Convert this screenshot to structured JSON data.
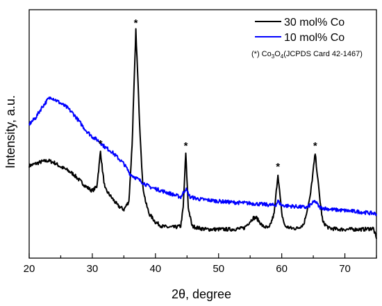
{
  "chart_data": {
    "type": "line",
    "title": "",
    "xlabel": "2θ, degree",
    "ylabel": "Intensity, a.u.",
    "xlim": [
      20,
      75
    ],
    "ylim": [
      0,
      100
    ],
    "x_ticks": [
      20,
      30,
      40,
      50,
      60,
      70
    ],
    "y_ticks_labeled": false,
    "grid": false,
    "legend_position": "top-right",
    "annotation": {
      "prefix": "(*) Co",
      "sub1": "3",
      "mid": "O",
      "sub2": "4",
      "suffix": "(JCPDS Card 42-1467)"
    },
    "peak_marker": "*",
    "peak_positions": [
      31.3,
      36.9,
      44.8,
      59.4,
      65.3
    ],
    "colors": {
      "series_30": "#000000",
      "series_10": "#0000ff"
    },
    "series": [
      {
        "name": "30 mol% Co",
        "color": "#000000",
        "points": [
          [
            20,
            35
          ],
          [
            21,
            36
          ],
          [
            22,
            37
          ],
          [
            23,
            37.5
          ],
          [
            24,
            36.5
          ],
          [
            25,
            34.5
          ],
          [
            26,
            33
          ],
          [
            27,
            31
          ],
          [
            28,
            28
          ],
          [
            29,
            25
          ],
          [
            30,
            23
          ],
          [
            30.7,
            25
          ],
          [
            31.0,
            33
          ],
          [
            31.3,
            42
          ],
          [
            31.6,
            33
          ],
          [
            32.0,
            24
          ],
          [
            33,
            20
          ],
          [
            34,
            16
          ],
          [
            35,
            14
          ],
          [
            35.8,
            18
          ],
          [
            36.3,
            45
          ],
          [
            36.9,
            100
          ],
          [
            37.5,
            55
          ],
          [
            38,
            25
          ],
          [
            38.5,
            17
          ],
          [
            39,
            12
          ],
          [
            40,
            8
          ],
          [
            41,
            6
          ],
          [
            42,
            5.5
          ],
          [
            43,
            5.5
          ],
          [
            44,
            6
          ],
          [
            44.4,
            15
          ],
          [
            44.8,
            41
          ],
          [
            45.2,
            15
          ],
          [
            45.8,
            6
          ],
          [
            47,
            5
          ],
          [
            48,
            4.5
          ],
          [
            50,
            4.5
          ],
          [
            52,
            4.5
          ],
          [
            54,
            5
          ],
          [
            55.5,
            10
          ],
          [
            56,
            10
          ],
          [
            57,
            6
          ],
          [
            58,
            5
          ],
          [
            58.8,
            12
          ],
          [
            59.4,
            31
          ],
          [
            60,
            12
          ],
          [
            60.5,
            6
          ],
          [
            61.5,
            5
          ],
          [
            62.5,
            5
          ],
          [
            63.5,
            7
          ],
          [
            64.5,
            20
          ],
          [
            65.3,
            41
          ],
          [
            66,
            20
          ],
          [
            66.5,
            8
          ],
          [
            67.5,
            5
          ],
          [
            69,
            4.5
          ],
          [
            71,
            4.5
          ],
          [
            73,
            4.5
          ],
          [
            74.5,
            5
          ],
          [
            75,
            0
          ]
        ]
      },
      {
        "name": "10 mol% Co",
        "color": "#0000ff",
        "points": [
          [
            20,
            55
          ],
          [
            21,
            58
          ],
          [
            22,
            63
          ],
          [
            23,
            67
          ],
          [
            23.5,
            68
          ],
          [
            24,
            67
          ],
          [
            25,
            65
          ],
          [
            26,
            63
          ],
          [
            27,
            60
          ],
          [
            28,
            56
          ],
          [
            29,
            52
          ],
          [
            30,
            49
          ],
          [
            31,
            47
          ],
          [
            32,
            44
          ],
          [
            33,
            42
          ],
          [
            34,
            39
          ],
          [
            35,
            36
          ],
          [
            36,
            31
          ],
          [
            37,
            29
          ],
          [
            38,
            27
          ],
          [
            39,
            25
          ],
          [
            40,
            24
          ],
          [
            41,
            23
          ],
          [
            42,
            22
          ],
          [
            43,
            21
          ],
          [
            44,
            20
          ],
          [
            44.8,
            24
          ],
          [
            45.5,
            20
          ],
          [
            47,
            19
          ],
          [
            50,
            18
          ],
          [
            52,
            17.5
          ],
          [
            55,
            17
          ],
          [
            57,
            16.5
          ],
          [
            59,
            16
          ],
          [
            59.4,
            18
          ],
          [
            60,
            16
          ],
          [
            62,
            15.5
          ],
          [
            64,
            15
          ],
          [
            65.3,
            18
          ],
          [
            66,
            15
          ],
          [
            68,
            14
          ],
          [
            70,
            13.5
          ],
          [
            72,
            13
          ],
          [
            75,
            12
          ]
        ]
      }
    ]
  }
}
